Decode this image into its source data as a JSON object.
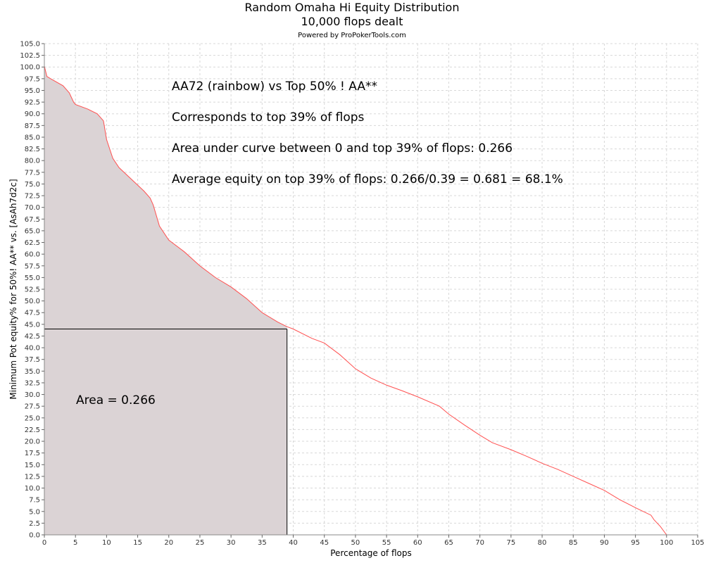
{
  "chart_data": {
    "type": "area",
    "title": "Random Omaha Hi Equity Distribution",
    "subtitle": "10,000 flops dealt",
    "credit": "Powered by ProPokerTools.com",
    "xlabel": "Percentage of flops",
    "ylabel": "Minimum Pot equity% for 50%! AA** vs. [AsAh7d2c]",
    "xlim": [
      0,
      105
    ],
    "ylim": [
      0,
      105
    ],
    "x_ticks": [
      0,
      5,
      10,
      15,
      20,
      25,
      30,
      35,
      40,
      45,
      50,
      55,
      60,
      65,
      70,
      75,
      80,
      85,
      90,
      95,
      100,
      105
    ],
    "y_ticks": [
      0.0,
      2.5,
      5.0,
      7.5,
      10.0,
      12.5,
      15.0,
      17.5,
      20.0,
      22.5,
      25.0,
      27.5,
      30.0,
      32.5,
      35.0,
      37.5,
      40.0,
      42.5,
      45.0,
      47.5,
      50.0,
      52.5,
      55.0,
      57.5,
      60.0,
      62.5,
      65.0,
      67.5,
      70.0,
      72.5,
      75.0,
      77.5,
      80.0,
      82.5,
      85.0,
      87.5,
      90.0,
      92.5,
      95.0,
      97.5,
      100.0,
      102.5,
      105.0
    ],
    "grid": true,
    "series": [
      {
        "color": "#ff5050",
        "x": [
          0,
          0.4,
          1,
          3,
          4,
          4.7,
          5,
          7,
          8.5,
          9.5,
          10,
          11,
          12,
          14,
          16,
          17,
          17.5,
          18.5,
          20,
          22.5,
          25,
          27.5,
          30,
          32.5,
          35,
          37.5,
          39,
          40,
          43,
          45,
          47.5,
          50,
          52.5,
          55,
          57.5,
          60,
          63.5,
          65,
          67.5,
          70,
          72,
          75,
          77.5,
          80,
          82.5,
          85,
          87.5,
          90,
          92.5,
          95,
          97.5,
          98,
          99,
          100
        ],
        "y": [
          100.2,
          98,
          97.5,
          96,
          94.5,
          92.5,
          92,
          91,
          90,
          88.5,
          84.5,
          80.5,
          78.5,
          76,
          73.5,
          72,
          70.5,
          66,
          63,
          60.5,
          57.5,
          55,
          53,
          50.5,
          47.5,
          45.5,
          44.5,
          44,
          42,
          41,
          38.5,
          35.5,
          33.5,
          32,
          30.8,
          29.5,
          27.5,
          25.8,
          23.5,
          21.3,
          19.7,
          18.2,
          16.8,
          15.3,
          14,
          12.5,
          11,
          9.5,
          7.5,
          5.8,
          4.2,
          3.2,
          1.8,
          0
        ]
      }
    ],
    "shaded_region": {
      "x_end": 39,
      "y_level": 44,
      "fill": "#dbd3d5"
    },
    "annotations": [
      "AA72 (rainbow) vs Top 50% ! AA**",
      "Corresponds to top 39% of flops",
      "Area under curve between 0 and top 39% of flops: 0.266",
      "Average equity on top 39% of flops: 0.266/0.39 = 0.681 = 68.1%"
    ],
    "area_label": "Area = 0.266"
  }
}
